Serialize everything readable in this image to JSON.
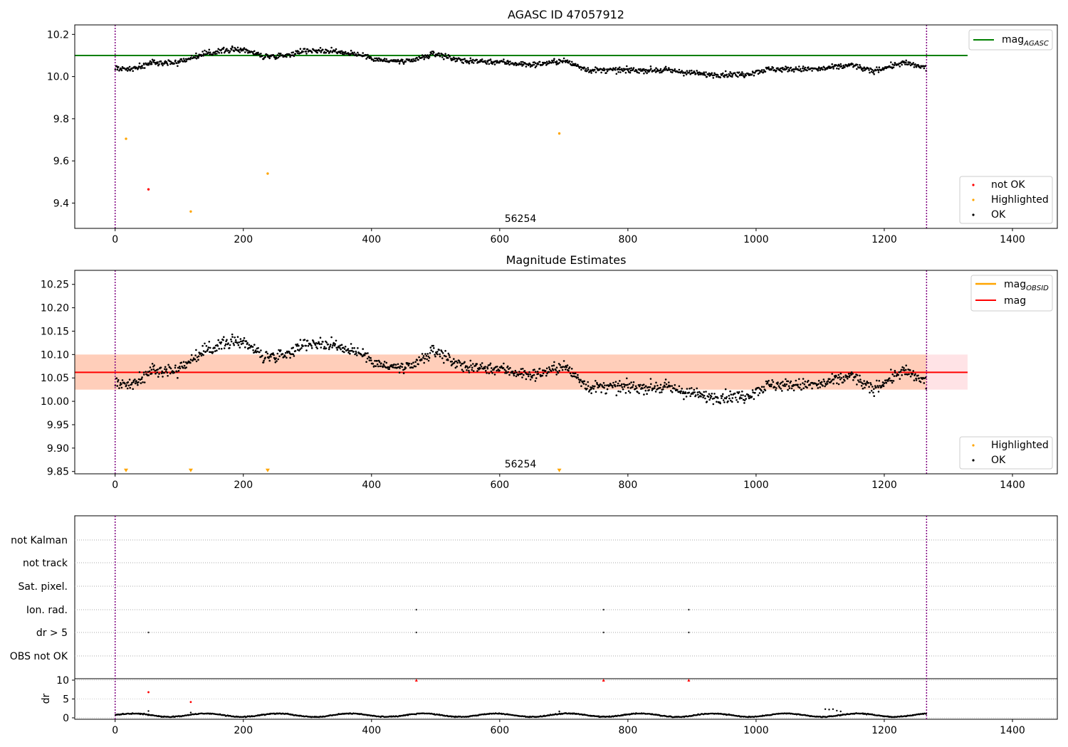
{
  "chart_data": [
    {
      "type": "scatter",
      "title": "AGASC ID 47057912",
      "xlim": [
        -63,
        1470
      ],
      "ylim": [
        9.28,
        10.245
      ],
      "xticks": [
        0,
        200,
        400,
        600,
        800,
        1000,
        1200,
        1400
      ],
      "yticks": [
        9.4,
        9.6,
        9.8,
        10.0,
        10.2
      ],
      "ytick_labels": [
        "9.4",
        "9.6",
        "9.8",
        "10.0",
        "10.2"
      ],
      "annotation": "56254",
      "vlines": [
        0,
        1266
      ],
      "reference_lines": [
        {
          "name": "mag_AGASC",
          "label_main": "mag",
          "label_sub": "AGASC",
          "y": 10.1,
          "x_end": 1330,
          "color": "#008000"
        }
      ],
      "legend_upper": "top-right",
      "legend_lower": "bottom-right",
      "series": [
        {
          "name": "not OK",
          "color": "#ff0000",
          "points": [
            [
              52,
              9.465
            ]
          ]
        },
        {
          "name": "Highlighted",
          "color": "#ffa500",
          "points": [
            [
              17,
              9.705
            ],
            [
              118,
              9.36
            ],
            [
              238,
              9.54
            ],
            [
              693,
              9.73
            ]
          ]
        },
        {
          "name": "OK",
          "color": "#000000",
          "trend": [
            [
              0,
              10.04
            ],
            [
              30,
              10.035
            ],
            [
              60,
              10.07
            ],
            [
              95,
              10.065
            ],
            [
              130,
              10.1
            ],
            [
              170,
              10.125
            ],
            [
              200,
              10.13
            ],
            [
              230,
              10.095
            ],
            [
              265,
              10.1
            ],
            [
              300,
              10.125
            ],
            [
              340,
              10.12
            ],
            [
              380,
              10.105
            ],
            [
              420,
              10.075
            ],
            [
              460,
              10.07
            ],
            [
              500,
              10.11
            ],
            [
              540,
              10.075
            ],
            [
              600,
              10.07
            ],
            [
              650,
              10.055
            ],
            [
              700,
              10.075
            ],
            [
              740,
              10.03
            ],
            [
              800,
              10.03
            ],
            [
              860,
              10.03
            ],
            [
              920,
              10.01
            ],
            [
              980,
              10.01
            ],
            [
              1020,
              10.035
            ],
            [
              1100,
              10.035
            ],
            [
              1150,
              10.055
            ],
            [
              1180,
              10.025
            ],
            [
              1230,
              10.065
            ],
            [
              1266,
              10.04
            ]
          ],
          "n_points": 1266,
          "scatter_sd": 0.013
        }
      ]
    },
    {
      "type": "scatter",
      "title": "Magnitude Estimates",
      "xlim": [
        -63,
        1470
      ],
      "ylim": [
        9.845,
        10.28
      ],
      "xticks": [
        0,
        200,
        400,
        600,
        800,
        1000,
        1200,
        1400
      ],
      "yticks": [
        9.85,
        9.9,
        9.95,
        10.0,
        10.05,
        10.1,
        10.15,
        10.2,
        10.25
      ],
      "ytick_labels": [
        "9.85",
        "9.90",
        "9.95",
        "10.00",
        "10.05",
        "10.10",
        "10.15",
        "10.20",
        "10.25"
      ],
      "annotation": "56254",
      "vlines": [
        0,
        1266
      ],
      "bands": [
        {
          "y0": 10.025,
          "y1": 10.1,
          "x_end": 1330,
          "color": "#ffb0b8"
        },
        {
          "y0": 10.025,
          "y1": 10.1,
          "x_end": 1266,
          "color": "#ffbe96"
        }
      ],
      "reference_lines": [
        {
          "name": "mag",
          "label_main": "mag",
          "y": 10.062,
          "x_end": 1330,
          "color": "#ff0000"
        }
      ],
      "legend_lines": [
        {
          "label_main": "mag",
          "label_sub": "OBSID",
          "color": "#ffa500"
        },
        {
          "label_main": "mag",
          "label_sub": "",
          "color": "#ff0000"
        }
      ],
      "legend_upper": "top-right",
      "legend_lower": "bottom-right",
      "series": [
        {
          "name": "Highlighted",
          "color": "#ffa500",
          "marker": "triangle-down",
          "points": [
            [
              17,
              9.85
            ],
            [
              118,
              9.85
            ],
            [
              238,
              9.85
            ],
            [
              693,
              9.85
            ]
          ]
        },
        {
          "name": "OK",
          "color": "#000000",
          "trend_ref": 0,
          "n_points": 1266,
          "scatter_sd": 0.013
        }
      ]
    },
    {
      "type": "scatter",
      "xlim": [
        -63,
        1470
      ],
      "ylim": [
        -0.5,
        10.8
      ],
      "xticks": [
        0,
        200,
        400,
        600,
        800,
        1000,
        1200,
        1400
      ],
      "yticks": [
        0,
        5,
        10
      ],
      "ytick_labels": [
        "0",
        "5",
        "10"
      ],
      "ylabel": "dr",
      "vlines": [
        0,
        1266
      ],
      "flag_rows": [
        "not Kalman",
        "not track",
        "Sat. pixel.",
        "Ion. rad.",
        "dr > 5",
        "OBS not OK"
      ],
      "flag_points": [
        [
          52,
          4
        ],
        [
          470,
          3
        ],
        [
          470,
          4
        ],
        [
          762,
          3
        ],
        [
          762,
          4
        ],
        [
          895,
          3
        ],
        [
          895,
          4
        ]
      ],
      "series": [
        {
          "name": "not OK",
          "color": "#ff0000",
          "points": [
            [
              52,
              6.8
            ],
            [
              118,
              4.2
            ],
            [
              470,
              10
            ],
            [
              762,
              10
            ],
            [
              895,
              10
            ]
          ]
        },
        {
          "name": "OK",
          "color": "#000000",
          "baseline": 0.7,
          "n_points": 1266,
          "extra_points": [
            [
              52,
              1.8
            ],
            [
              118,
              1.4
            ],
            [
              693,
              1.7
            ],
            [
              1108,
              2.3
            ],
            [
              1114,
              2.2
            ],
            [
              1120,
              2.3
            ],
            [
              1126,
              1.9
            ],
            [
              1132,
              1.7
            ]
          ]
        }
      ]
    }
  ]
}
